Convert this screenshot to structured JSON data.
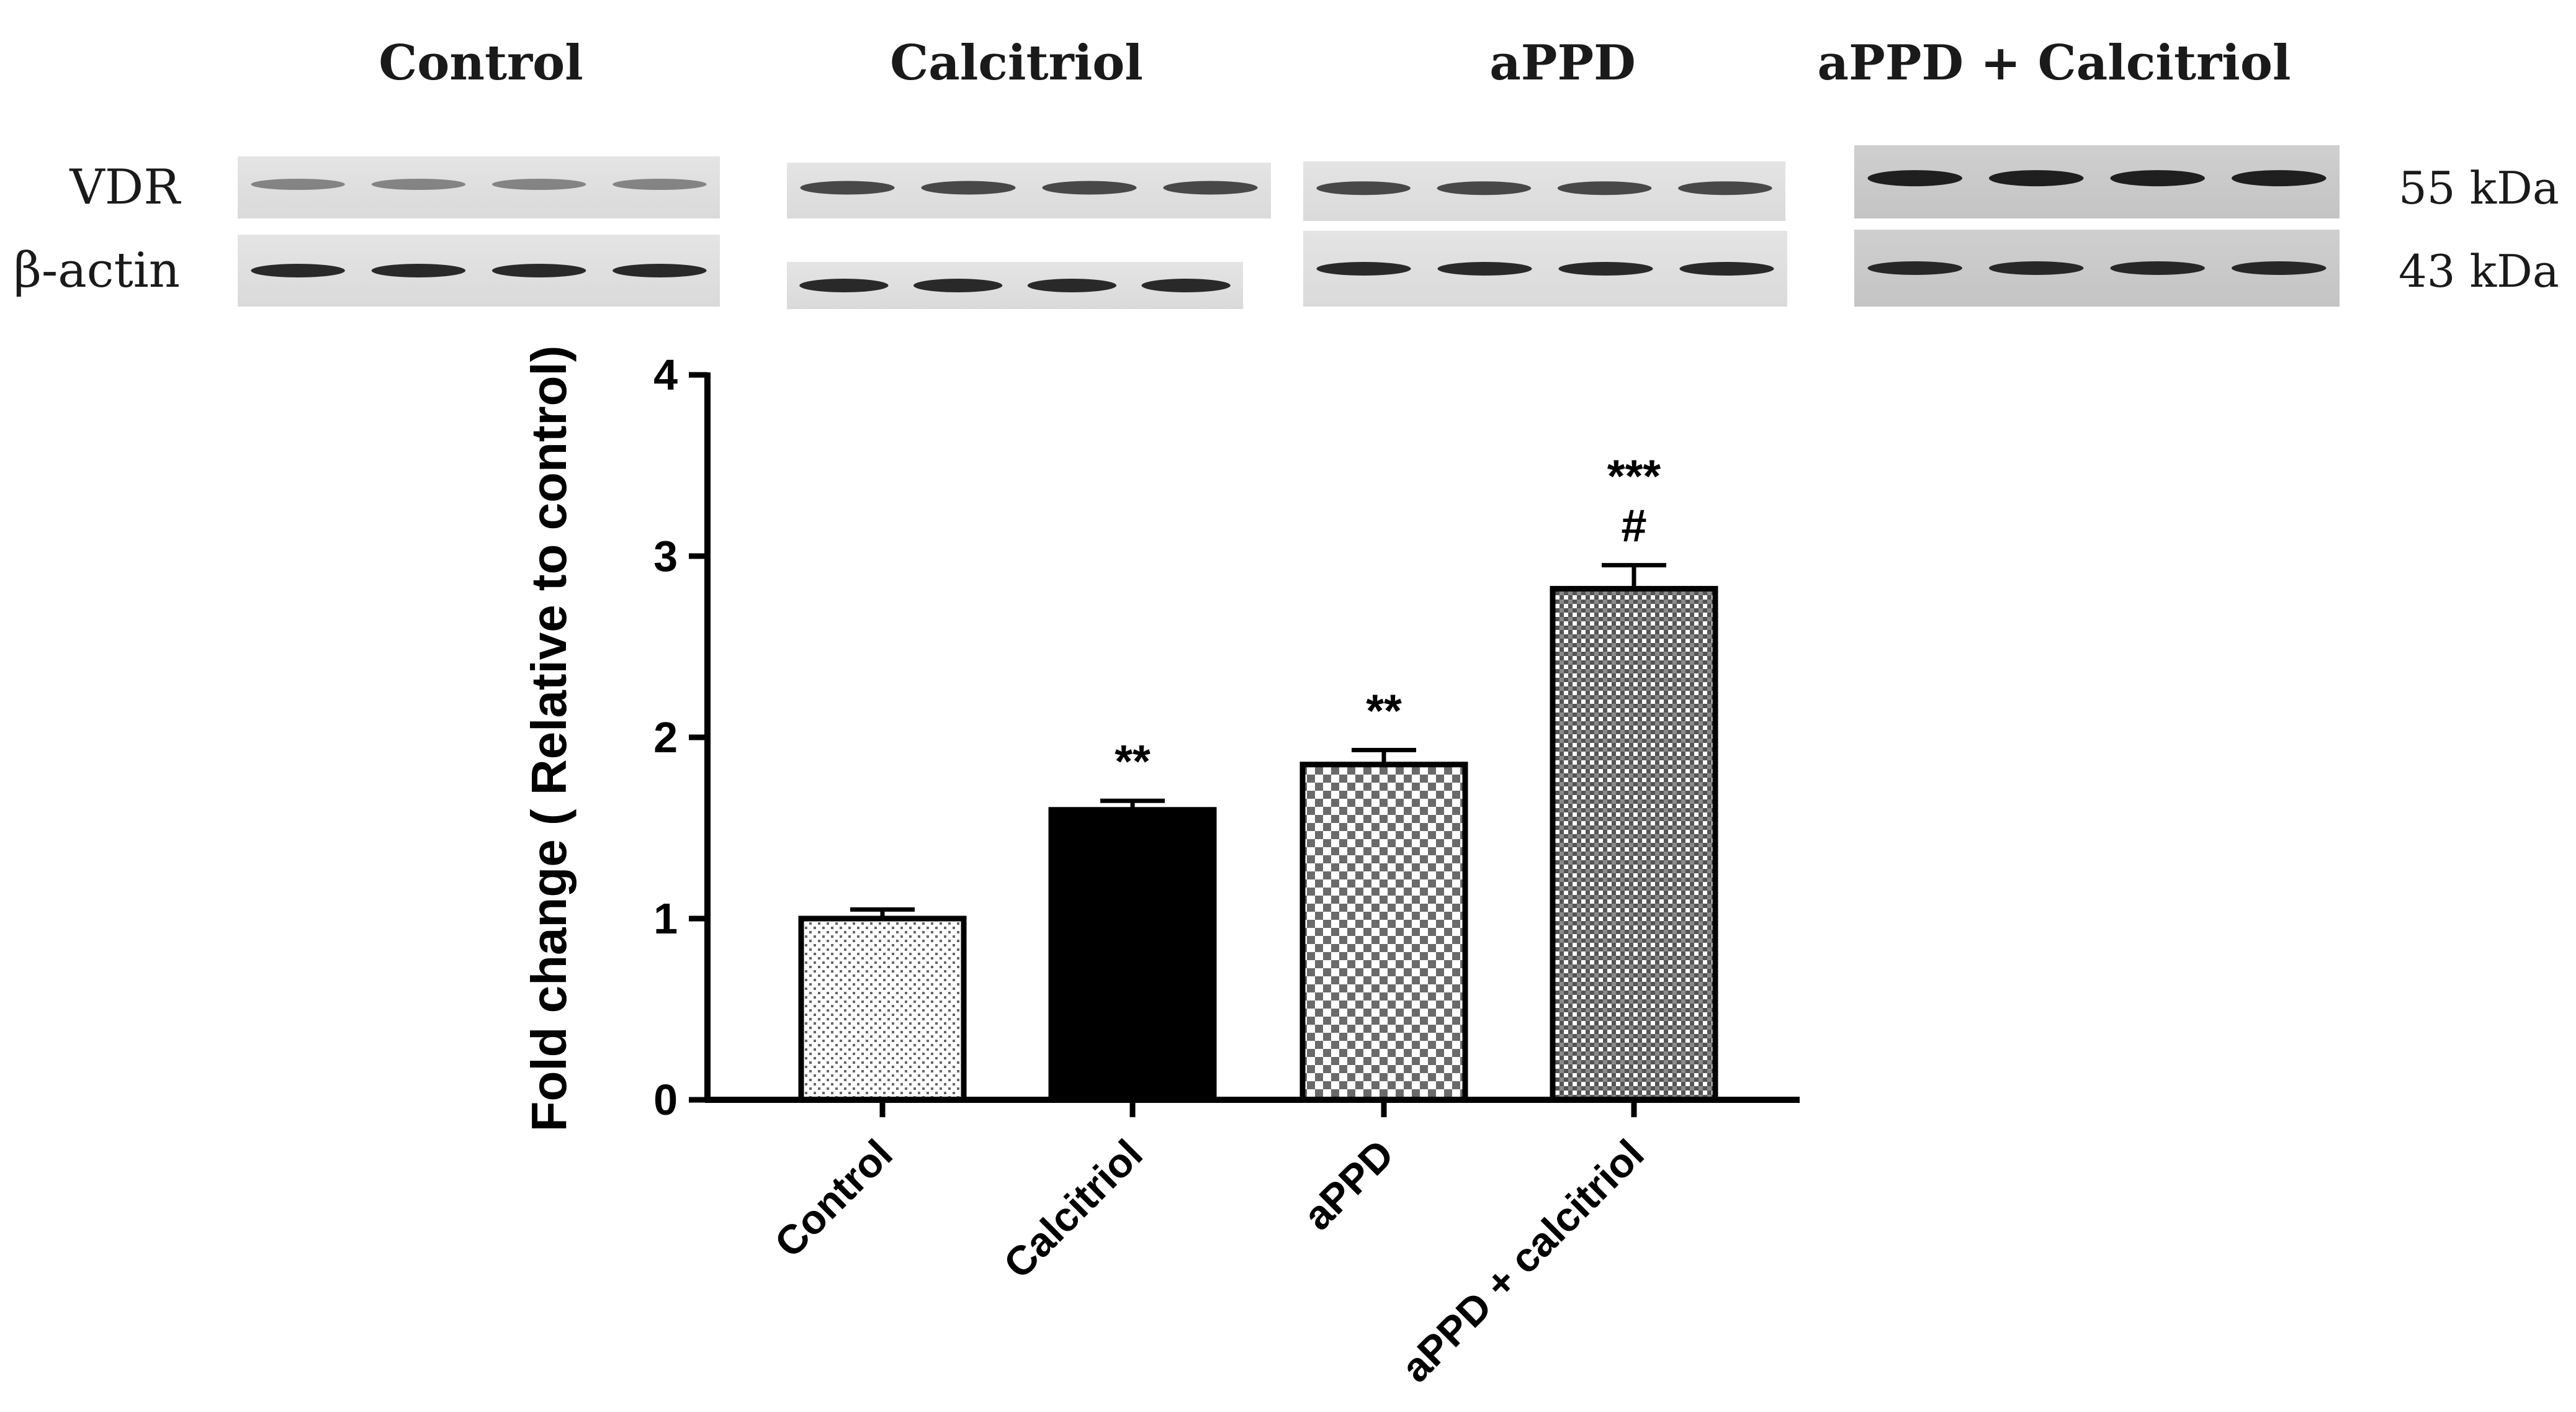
{
  "blot": {
    "groups": [
      "Control",
      "Calcitriol",
      "aPPD",
      "aPPD + Calcitriol"
    ],
    "rows": [
      {
        "label": "VDR",
        "kda": "55 kDa"
      },
      {
        "label": "β-actin",
        "kda": "43 kDa"
      }
    ],
    "lanes_per_group": 4
  },
  "chart_data": {
    "type": "bar",
    "categories": [
      "Control",
      "Calcitriol",
      "aPPD",
      "aPPD + calcitriol"
    ],
    "values": [
      1.0,
      1.6,
      1.85,
      2.82
    ],
    "errors": [
      0.05,
      0.05,
      0.08,
      0.13
    ],
    "annotations": [
      "",
      "**",
      "**",
      "***\n#"
    ],
    "ylabel": "Fold change ( Relative to control)",
    "xlabel": "",
    "title": "",
    "ylim": [
      0,
      4
    ],
    "yticks": [
      0,
      1,
      2,
      3,
      4
    ],
    "grid": false,
    "bar_fills": [
      "fine-dots",
      "solid-black",
      "checker-large",
      "checker-small"
    ],
    "colors": {
      "bar_stroke": "#000000",
      "axis": "#000000"
    }
  }
}
